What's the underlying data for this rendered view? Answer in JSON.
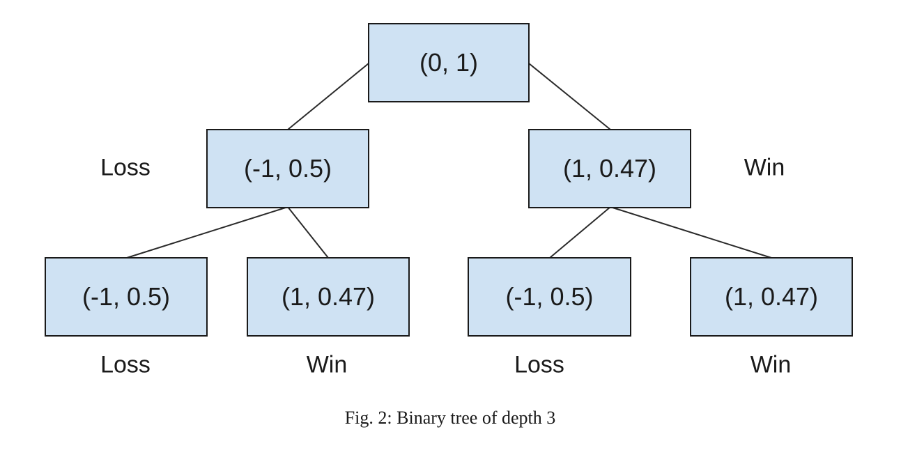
{
  "colors": {
    "node_fill": "#cfe2f3",
    "node_border": "#1a1a1a",
    "edge": "#2a2a2a",
    "text": "#1a1a1a"
  },
  "nodes": {
    "root": "(0, 1)",
    "l1_left": "(-1, 0.5)",
    "l1_right": "(1, 0.47)",
    "l2_ll": "(-1, 0.5)",
    "l2_lr": "(1, 0.47)",
    "l2_rl": "(-1, 0.5)",
    "l2_rr": "(1, 0.47)"
  },
  "outcome_labels": {
    "l1_left": "Loss",
    "l1_right": "Win",
    "l2_ll": "Loss",
    "l2_lr": "Win",
    "l2_rl": "Loss",
    "l2_rr": "Win"
  },
  "caption": "Fig. 2: Binary tree of depth 3"
}
